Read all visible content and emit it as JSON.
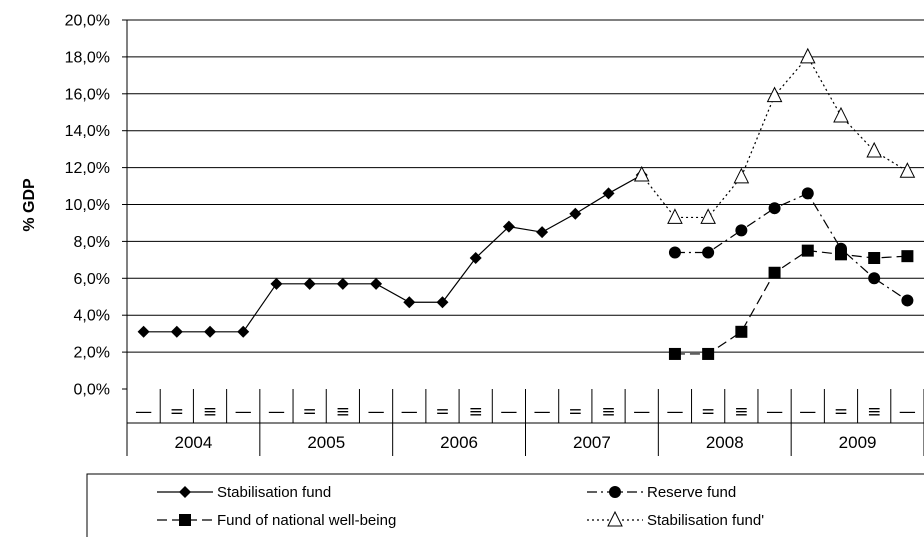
{
  "chart_data": {
    "type": "line",
    "ylabel": "% GDP",
    "xlabel": "",
    "ylim": [
      0,
      20
    ],
    "y_ticks": [
      "0,0%",
      "2,0%",
      "4,0%",
      "6,0%",
      "8,0%",
      "10,0%",
      "12,0%",
      "14,0%",
      "16,0%",
      "18,0%",
      "20,0%"
    ],
    "quarter_labels": [
      "—",
      "=",
      "≡",
      "—"
    ],
    "years": [
      "2004",
      "2005",
      "2006",
      "2007",
      "2008",
      "2009"
    ],
    "grid": "horizontal",
    "legend_position": "bottom",
    "series": [
      {
        "name": "Stabilisation fund",
        "marker": "diamond",
        "line": "solid",
        "color": "#000000",
        "values": [
          3.1,
          3.1,
          3.1,
          3.1,
          5.7,
          5.7,
          5.7,
          5.7,
          4.7,
          4.7,
          7.1,
          8.8,
          8.5,
          9.5,
          10.6,
          11.6,
          null,
          null,
          null,
          null,
          null,
          null,
          null,
          null
        ]
      },
      {
        "name": "Reserve fund",
        "marker": "circle",
        "line": "dashdot",
        "color": "#000000",
        "values": [
          null,
          null,
          null,
          null,
          null,
          null,
          null,
          null,
          null,
          null,
          null,
          null,
          null,
          null,
          null,
          null,
          7.4,
          7.4,
          8.6,
          9.8,
          10.6,
          7.6,
          6.0,
          4.8
        ]
      },
      {
        "name": "Fund of national well-being",
        "marker": "square",
        "line": "dashed",
        "color": "#000000",
        "values": [
          null,
          null,
          null,
          null,
          null,
          null,
          null,
          null,
          null,
          null,
          null,
          null,
          null,
          null,
          null,
          null,
          1.9,
          1.9,
          3.1,
          6.3,
          7.5,
          7.3,
          7.1,
          7.2
        ]
      },
      {
        "name": "Stabilisation fund'",
        "marker": "triangle-open",
        "line": "dotted",
        "color": "#000000",
        "values": [
          null,
          null,
          null,
          null,
          null,
          null,
          null,
          null,
          null,
          null,
          null,
          null,
          null,
          null,
          null,
          11.6,
          9.3,
          9.3,
          11.5,
          15.9,
          18.0,
          14.8,
          12.9,
          11.8
        ]
      }
    ]
  }
}
